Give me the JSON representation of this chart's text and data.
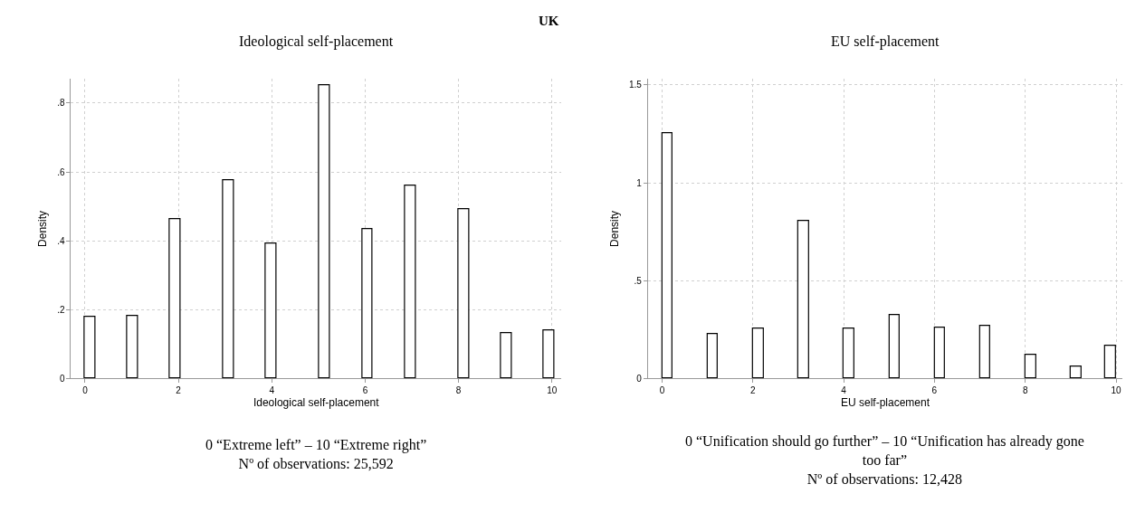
{
  "chart_data": [
    {
      "type": "bar",
      "title": "UK",
      "subtitle": "Ideological self-placement",
      "xlabel": "Ideological self-placement",
      "ylabel": "Density",
      "x": [
        0.11,
        1.02,
        1.93,
        3.08,
        3.99,
        5.13,
        6.05,
        6.97,
        8.11,
        9.03,
        9.93
      ],
      "values": [
        0.178,
        0.182,
        0.462,
        0.577,
        0.392,
        0.852,
        0.433,
        0.561,
        0.493,
        0.132,
        0.14
      ],
      "color": "#ffffff",
      "xlim": [
        -0.3,
        10.2
      ],
      "xticks": [
        0,
        2,
        4,
        6,
        8,
        10
      ],
      "ylim": [
        0,
        0.87
      ],
      "yticks": [
        0,
        {
          "value": 0.2,
          "label": ".2"
        },
        {
          "value": 0.4,
          "label": ".4"
        },
        {
          "value": 0.6,
          "label": ".6"
        },
        {
          "value": 0.8,
          "label": ".8"
        }
      ],
      "grid": true,
      "annotations": [
        "0 “Extreme left” – 10 “Extreme right”",
        "Nº of observations: 25,592"
      ]
    },
    {
      "type": "bar",
      "subtitle": "EU self-placement",
      "xlabel": "EU self-placement",
      "ylabel": "Density",
      "x": [
        0.12,
        1.12,
        2.12,
        3.12,
        4.12,
        5.12,
        6.12,
        7.12,
        8.12,
        9.12,
        9.88
      ],
      "values": [
        1.255,
        0.228,
        0.255,
        0.804,
        0.254,
        0.324,
        0.261,
        0.268,
        0.121,
        0.063,
        0.169
      ],
      "color": "#ffffff",
      "xlim": [
        -0.31,
        10.14
      ],
      "xticks": [
        0,
        2,
        4,
        6,
        8,
        10
      ],
      "ylim": [
        0,
        1.53
      ],
      "yticks": [
        0,
        {
          "value": 0.5,
          "label": ".5"
        },
        1,
        1.5
      ],
      "grid": true,
      "annotations": [
        "0 “Unification should go further” – 10 “Unification has already gone too far”",
        "Nº of observations: 12,428"
      ]
    }
  ]
}
